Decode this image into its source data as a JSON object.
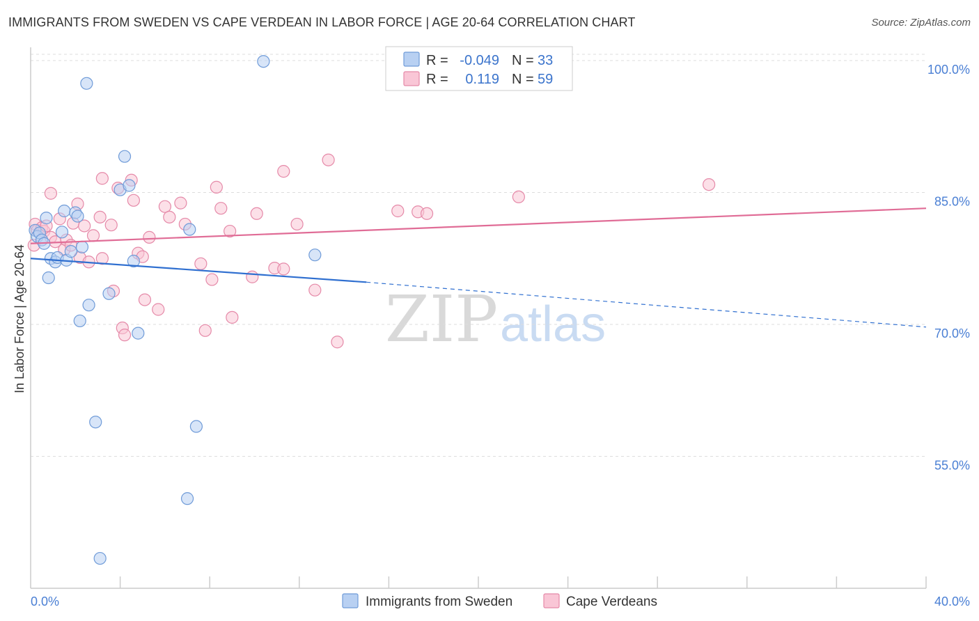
{
  "title": "IMMIGRANTS FROM SWEDEN VS CAPE VERDEAN IN LABOR FORCE | AGE 20-64 CORRELATION CHART",
  "source": "Source: ZipAtlas.com",
  "watermark": {
    "zip": "ZIP",
    "atlas": "atlas"
  },
  "legend": {
    "r_label": "R =",
    "n_label": "N =",
    "rows": [
      {
        "name": "Immigrants from Sweden",
        "r": "-0.049",
        "n": "33",
        "fill": "#b8d0f2",
        "stroke": "#6f9bd8"
      },
      {
        "name": "Cape Verdeans",
        "r": "0.119",
        "n": "59",
        "fill": "#f9c6d6",
        "stroke": "#e589a8"
      }
    ]
  },
  "chart_data": {
    "type": "scatter",
    "title": "IMMIGRANTS FROM SWEDEN VS CAPE VERDEAN IN LABOR FORCE | AGE 20-64 CORRELATION CHART",
    "xlabel": "",
    "ylabel": "In Labor Force | Age 20-64",
    "xlim": [
      0,
      40
    ],
    "ylim": [
      40,
      101.5
    ],
    "x_tick_labels": [
      "0.0%",
      "40.0%"
    ],
    "y_ticks": [
      55,
      70,
      85,
      100
    ],
    "y_tick_labels": [
      "55.0%",
      "70.0%",
      "85.0%",
      "100.0%"
    ],
    "grid": true,
    "series": [
      {
        "name": "Immigrants from Sweden",
        "color": "#6f9bd8",
        "fill": "#b8d0f2",
        "line_color": "#2f6fd0",
        "trend": {
          "x0": 0,
          "y0": 77.5,
          "x1": 15,
          "y1": 74.8,
          "dashed_to_x": 40,
          "dashed_to_y": 69.7
        },
        "points": [
          [
            0.2,
            80.7
          ],
          [
            0.3,
            80.0
          ],
          [
            0.4,
            80.4
          ],
          [
            0.5,
            79.6
          ],
          [
            0.6,
            79.2
          ],
          [
            0.7,
            82.1
          ],
          [
            0.9,
            77.5
          ],
          [
            0.8,
            75.3
          ],
          [
            1.1,
            77.1
          ],
          [
            1.2,
            77.6
          ],
          [
            1.4,
            80.5
          ],
          [
            1.5,
            82.9
          ],
          [
            1.6,
            77.3
          ],
          [
            1.8,
            78.3
          ],
          [
            2.0,
            82.7
          ],
          [
            2.1,
            82.3
          ],
          [
            2.3,
            78.8
          ],
          [
            2.2,
            70.4
          ],
          [
            2.6,
            72.2
          ],
          [
            2.5,
            97.4
          ],
          [
            2.9,
            58.9
          ],
          [
            3.1,
            43.4
          ],
          [
            3.5,
            73.5
          ],
          [
            4.0,
            85.3
          ],
          [
            4.2,
            89.1
          ],
          [
            4.4,
            85.8
          ],
          [
            4.6,
            77.2
          ],
          [
            4.8,
            69.0
          ],
          [
            7.0,
            50.2
          ],
          [
            7.1,
            80.8
          ],
          [
            7.4,
            58.4
          ],
          [
            10.4,
            99.9
          ],
          [
            12.7,
            77.9
          ]
        ]
      },
      {
        "name": "Cape Verdeans",
        "color": "#e589a8",
        "fill": "#f9c6d6",
        "line_color": "#e06c96",
        "trend": {
          "x0": 0,
          "y0": 79.2,
          "x1": 40,
          "y1": 83.2
        },
        "points": [
          [
            0.2,
            81.4
          ],
          [
            0.3,
            80.7
          ],
          [
            0.5,
            81.0
          ],
          [
            0.6,
            80.6
          ],
          [
            0.7,
            81.2
          ],
          [
            0.9,
            79.9
          ],
          [
            0.9,
            84.9
          ],
          [
            1.1,
            79.4
          ],
          [
            1.3,
            82.0
          ],
          [
            1.5,
            78.5
          ],
          [
            1.6,
            79.6
          ],
          [
            1.8,
            79.0
          ],
          [
            1.9,
            81.5
          ],
          [
            2.1,
            83.7
          ],
          [
            2.2,
            77.6
          ],
          [
            2.4,
            81.2
          ],
          [
            2.6,
            77.1
          ],
          [
            2.8,
            80.1
          ],
          [
            3.1,
            82.2
          ],
          [
            3.2,
            77.5
          ],
          [
            3.2,
            86.6
          ],
          [
            3.6,
            81.3
          ],
          [
            3.7,
            73.8
          ],
          [
            3.9,
            85.5
          ],
          [
            4.1,
            69.6
          ],
          [
            4.2,
            68.8
          ],
          [
            4.5,
            86.4
          ],
          [
            4.6,
            84.1
          ],
          [
            4.8,
            78.1
          ],
          [
            5.0,
            77.7
          ],
          [
            5.1,
            72.8
          ],
          [
            5.3,
            79.9
          ],
          [
            5.7,
            71.7
          ],
          [
            6.0,
            83.4
          ],
          [
            6.2,
            82.2
          ],
          [
            6.7,
            83.8
          ],
          [
            6.9,
            81.4
          ],
          [
            7.6,
            76.9
          ],
          [
            7.8,
            69.3
          ],
          [
            8.1,
            75.1
          ],
          [
            8.3,
            85.6
          ],
          [
            8.5,
            83.2
          ],
          [
            8.9,
            80.6
          ],
          [
            9.0,
            70.8
          ],
          [
            9.9,
            75.4
          ],
          [
            10.1,
            82.6
          ],
          [
            10.9,
            76.4
          ],
          [
            11.3,
            76.3
          ],
          [
            11.3,
            87.4
          ],
          [
            11.9,
            81.4
          ],
          [
            12.7,
            73.9
          ],
          [
            13.3,
            88.7
          ],
          [
            13.7,
            68.0
          ],
          [
            16.4,
            82.9
          ],
          [
            17.3,
            82.8
          ],
          [
            17.7,
            82.6
          ],
          [
            21.8,
            84.5
          ],
          [
            30.3,
            85.9
          ],
          [
            0.15,
            79.0
          ]
        ]
      }
    ]
  }
}
